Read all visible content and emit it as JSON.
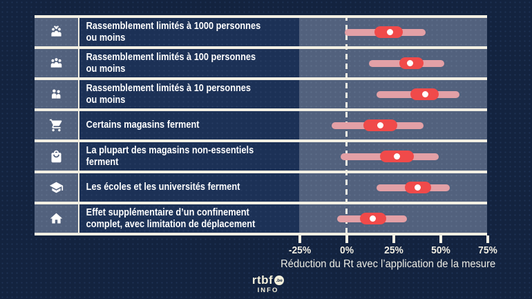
{
  "rows": [
    {
      "label": "Rassemblement limités à 1000 personnes\nou moins",
      "icon": "crowd-icon"
    },
    {
      "label": "Rassemblement limités à 100 personnes\nou moins",
      "icon": "group-three-icon"
    },
    {
      "label": "Rassemblement limités à 10 personnes\nou moins",
      "icon": "group-two-icon"
    },
    {
      "label": "Certains magasins ferment",
      "icon": "shopping-cart-icon"
    },
    {
      "label": "La plupart des magasins non-essentiels ferment",
      "icon": "shopping-bag-icon"
    },
    {
      "label": "Les écoles et les universités ferment",
      "icon": "graduation-cap-icon"
    },
    {
      "label": "Effet supplémentaire d’un confinement\ncomplet, avec limitation de déplacement",
      "icon": "house-icon"
    }
  ],
  "chart_data": {
    "type": "scatter",
    "variant": "horizontal interval plot (median dot + inner and outer credible ranges)",
    "categories": [
      "Rassemblement limités à 1000 personnes ou moins",
      "Rassemblement limités à 100 personnes ou moins",
      "Rassemblement limités à 10 personnes ou moins",
      "Certains magasins ferment",
      "La plupart des magasins non-essentiels ferment",
      "Les écoles et les universités ferment",
      "Effet supplémentaire d’un confinement complet, avec limitation de déplacement"
    ],
    "series": [
      {
        "name": "mediane_pct",
        "values": [
          23,
          34,
          42,
          18,
          27,
          38,
          14
        ]
      },
      {
        "name": "intervalle_interne_pct",
        "values": [
          [
            15,
            30
          ],
          [
            28,
            41
          ],
          [
            34,
            49
          ],
          [
            9,
            27
          ],
          [
            18,
            36
          ],
          [
            31,
            45
          ],
          [
            7,
            21
          ]
        ]
      },
      {
        "name": "intervalle_externe_pct",
        "values": [
          [
            -1,
            42
          ],
          [
            12,
            52
          ],
          [
            16,
            60
          ],
          [
            -8,
            41
          ],
          [
            -3,
            49
          ],
          [
            16,
            55
          ],
          [
            -5,
            32
          ]
        ]
      }
    ],
    "xlabel": "Réduction du Rt avec l’application de la mesure",
    "xlim": [
      -25.2,
      75.7
    ],
    "x_tick_values": [
      -25,
      0,
      25,
      50,
      75
    ],
    "x_tick_labels": [
      "-25%",
      "0%",
      "25%",
      "50%",
      "75%"
    ],
    "zero_line": 0,
    "grid": false,
    "legend": false
  },
  "axis": {
    "ticks": [
      "-25%",
      "0%",
      "25%",
      "50%",
      "75%"
    ],
    "title": "Réduction du Rt avec l’application de la mesure"
  },
  "logo": {
    "brand": "rtbf",
    "domain": ".be",
    "sub": "INFO"
  },
  "colors": {
    "background": "#13233F",
    "panel_light": "#52617D",
    "panel_dark": "#1C3156",
    "line_cream": "#F2EFE3",
    "accent_red": "#F04A4A",
    "range_pink": "#E3A0A6",
    "dot_white": "#FFFFFF"
  }
}
